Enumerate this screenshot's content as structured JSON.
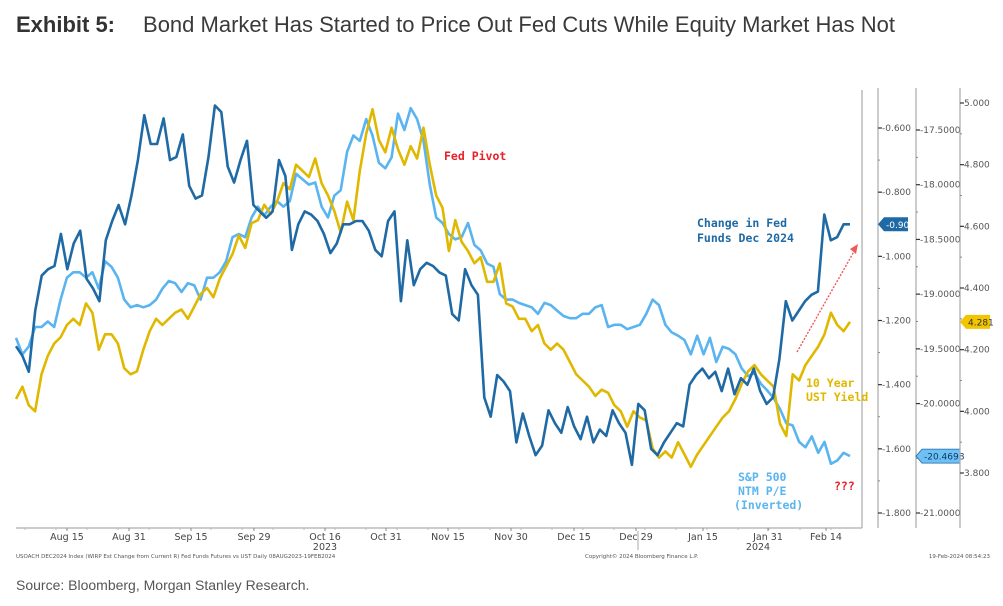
{
  "title": {
    "exhibit": "Exhibit 5:",
    "text": "Bond Market Has Started to Price Out Fed Cuts While Equity Market Has Not"
  },
  "source": "Source: Bloomberg, Morgan Stanley Research.",
  "chart_data": {
    "type": "line",
    "title": "Bond Market Has Started to Price Out Fed Cuts While Equity Market Has Not",
    "x_tick_labels": [
      "Aug 15",
      "Aug 31",
      "Sep 15",
      "Sep 29",
      "Oct 16",
      "Oct 31",
      "Nov 15",
      "Nov 30",
      "Dec 15",
      "Dec 29",
      "Jan 15",
      "Jan 31",
      "Feb 14"
    ],
    "x_year_labels": [
      {
        "after": "Oct 16",
        "label": "2023"
      },
      {
        "after": "Jan 31",
        "label": "2024"
      }
    ],
    "x_range": [
      "2023-08-08",
      "2024-02-19"
    ],
    "grid": false,
    "axes": [
      {
        "name": "Change in Fed Funds Dec 2024",
        "side": "right-1",
        "range": [
          -1.85,
          -0.45
        ],
        "ticks": [
          -0.6,
          -0.8,
          -1.0,
          -1.2,
          -1.4,
          -1.6,
          -1.8
        ],
        "tick_format": "0.000",
        "last_value": "-0.900",
        "color": "#1f6aa5"
      },
      {
        "name": "S&P 500 NTM P/E (Inverted)",
        "side": "right-2",
        "range": [
          -21.0,
          -17.0
        ],
        "ticks": [
          -17.5,
          -18.0,
          -18.5,
          -19.0,
          -19.5,
          -20.0,
          -21.0
        ],
        "tick_format": "0.0000",
        "last_value": "-20.4698",
        "color": "#5ab4f0"
      },
      {
        "name": "10 Year UST Yield",
        "side": "right-3",
        "range": [
          3.7,
          5.05
        ],
        "ticks": [
          5.0,
          4.8,
          4.6,
          4.4,
          4.2,
          4.0,
          3.8
        ],
        "tick_format": "0.000",
        "last_value": "4.281",
        "color": "#e0b800"
      }
    ],
    "series": [
      {
        "name": "Change in Fed Funds Dec 2024",
        "axis": 0,
        "color": "#1f6aa5",
        "values": [
          -1.28,
          -1.31,
          -1.36,
          -1.17,
          -1.06,
          -1.04,
          -1.03,
          -0.93,
          -1.04,
          -0.96,
          -0.92,
          -1.07,
          -1.1,
          -1.14,
          -0.95,
          -0.89,
          -0.84,
          -0.9,
          -0.81,
          -0.7,
          -0.56,
          -0.65,
          -0.65,
          -0.57,
          -0.7,
          -0.69,
          -0.62,
          -0.78,
          -0.82,
          -0.81,
          -0.69,
          -0.53,
          -0.55,
          -0.72,
          -0.77,
          -0.7,
          -0.64,
          -0.84,
          -0.86,
          -0.88,
          -0.86,
          -0.7,
          -0.75,
          -0.98,
          -0.9,
          -0.86,
          -0.87,
          -0.89,
          -0.93,
          -0.99,
          -0.96,
          -0.9,
          -0.9,
          -0.89,
          -0.89,
          -0.92,
          -0.98,
          -1.0,
          -0.89,
          -0.86,
          -1.14,
          -0.95,
          -1.09,
          -1.04,
          -1.02,
          -1.03,
          -1.05,
          -1.06,
          -1.18,
          -1.2,
          -1.04,
          -1.09,
          -1.12,
          -1.44,
          -1.5,
          -1.37,
          -1.39,
          -1.42,
          -1.58,
          -1.49,
          -1.56,
          -1.62,
          -1.59,
          -1.48,
          -1.52,
          -1.55,
          -1.47,
          -1.53,
          -1.57,
          -1.5,
          -1.58,
          -1.54,
          -1.56,
          -1.48,
          -1.52,
          -1.55,
          -1.65,
          -1.46,
          -1.48,
          -1.6,
          -1.62,
          -1.58,
          -1.55,
          -1.52,
          -1.53,
          -1.4,
          -1.37,
          -1.35,
          -1.38,
          -1.36,
          -1.42,
          -1.35,
          -1.43,
          -1.38,
          -1.4,
          -1.35,
          -1.42,
          -1.46,
          -1.44,
          -1.32,
          -1.14,
          -1.2,
          -1.17,
          -1.14,
          -1.12,
          -1.11,
          -0.87,
          -0.95,
          -0.94,
          -0.9,
          -0.9
        ]
      },
      {
        "name": "S&P 500 NTM P/E (Inverted)",
        "axis": 1,
        "color": "#5ab4f0",
        "values": [
          -19.4,
          -19.55,
          -19.48,
          -19.3,
          -19.3,
          -19.25,
          -19.3,
          -19.05,
          -18.85,
          -18.8,
          -18.8,
          -18.85,
          -18.8,
          -18.95,
          -18.7,
          -18.75,
          -18.85,
          -19.05,
          -19.12,
          -19.1,
          -19.12,
          -19.1,
          -19.05,
          -18.95,
          -18.88,
          -18.9,
          -18.98,
          -18.9,
          -18.92,
          -19.05,
          -18.85,
          -18.85,
          -18.8,
          -18.7,
          -18.48,
          -18.45,
          -18.48,
          -18.3,
          -18.2,
          -18.28,
          -18.2,
          -18.15,
          -18.2,
          -18.15,
          -17.9,
          -17.95,
          -18.0,
          -17.98,
          -18.2,
          -18.3,
          -18.1,
          -18.05,
          -17.7,
          -17.55,
          -17.6,
          -17.4,
          -17.55,
          -17.8,
          -17.85,
          -17.75,
          -17.35,
          -17.5,
          -17.3,
          -17.4,
          -17.6,
          -18.0,
          -18.3,
          -18.35,
          -18.45,
          -18.5,
          -18.48,
          -18.35,
          -18.55,
          -18.6,
          -18.72,
          -18.75,
          -19.0,
          -19.05,
          -19.05,
          -19.08,
          -19.1,
          -19.12,
          -19.18,
          -19.08,
          -19.1,
          -19.15,
          -19.2,
          -19.22,
          -19.22,
          -19.18,
          -19.18,
          -19.12,
          -19.1,
          -19.3,
          -19.28,
          -19.28,
          -19.32,
          -19.3,
          -19.28,
          -19.18,
          -19.05,
          -19.1,
          -19.28,
          -19.35,
          -19.38,
          -19.42,
          -19.55,
          -19.38,
          -19.55,
          -19.4,
          -19.62,
          -19.48,
          -19.5,
          -19.55,
          -19.68,
          -19.75,
          -19.72,
          -19.82,
          -19.88,
          -19.95,
          -20.05,
          -20.18,
          -20.2,
          -20.35,
          -20.4,
          -20.3,
          -20.45,
          -20.35,
          -20.55,
          -20.52,
          -20.45,
          -20.48
        ]
      },
      {
        "name": "10 Year UST Yield",
        "axis": 2,
        "color": "#e0b800",
        "values": [
          4.04,
          4.08,
          4.02,
          4.0,
          4.12,
          4.18,
          4.22,
          4.24,
          4.28,
          4.3,
          4.28,
          4.35,
          4.32,
          4.2,
          4.25,
          4.25,
          4.22,
          4.14,
          4.12,
          4.13,
          4.2,
          4.26,
          4.3,
          4.28,
          4.3,
          4.32,
          4.33,
          4.3,
          4.34,
          4.38,
          4.4,
          4.37,
          4.43,
          4.47,
          4.51,
          4.57,
          4.53,
          4.61,
          4.62,
          4.67,
          4.64,
          4.68,
          4.74,
          4.72,
          4.8,
          4.78,
          4.76,
          4.82,
          4.74,
          4.7,
          4.65,
          4.58,
          4.68,
          4.62,
          4.78,
          4.9,
          4.98,
          4.88,
          4.84,
          4.92,
          4.85,
          4.8,
          4.86,
          4.82,
          4.92,
          4.8,
          4.7,
          4.66,
          4.52,
          4.62,
          4.55,
          4.52,
          4.48,
          4.5,
          4.42,
          4.42,
          4.48,
          4.35,
          4.34,
          4.3,
          4.3,
          4.26,
          4.28,
          4.22,
          4.2,
          4.22,
          4.2,
          4.16,
          4.12,
          4.1,
          4.08,
          4.05,
          4.07,
          4.06,
          4.02,
          4.0,
          3.95,
          4.0,
          3.98,
          3.97,
          3.88,
          3.85,
          3.87,
          3.85,
          3.9,
          3.86,
          3.82,
          3.86,
          3.89,
          3.92,
          3.95,
          3.98,
          4.0,
          4.04,
          4.09,
          4.13,
          4.15,
          4.12,
          4.1,
          4.08,
          3.96,
          3.92,
          4.12,
          4.1,
          4.15,
          4.18,
          4.21,
          4.25,
          4.32,
          4.28,
          4.26,
          4.29
        ]
      }
    ],
    "annotations": [
      {
        "text": "Fed Pivot",
        "color": "#e8202a"
      },
      {
        "text": "Change in Fed\nFunds Dec 2024",
        "color": "#1f6aa5"
      },
      {
        "text": "10 Year\nUST Yield",
        "color": "#e0b800"
      },
      {
        "text": "S&P 500\nNTM P/E\n(Inverted)",
        "color": "#5ab4f0"
      },
      {
        "text": "???",
        "color": "#e8202a"
      }
    ],
    "footer_left": "USOACH DEC2024 Index (WIRP Est Change from Current R) Fed Funds Futures vs UST  Daily 08AUG2023-19FEB2024",
    "footer_center": "Copyright© 2024 Bloomberg Finance L.P.",
    "footer_right": "19-Feb-2024 08:54:23"
  }
}
